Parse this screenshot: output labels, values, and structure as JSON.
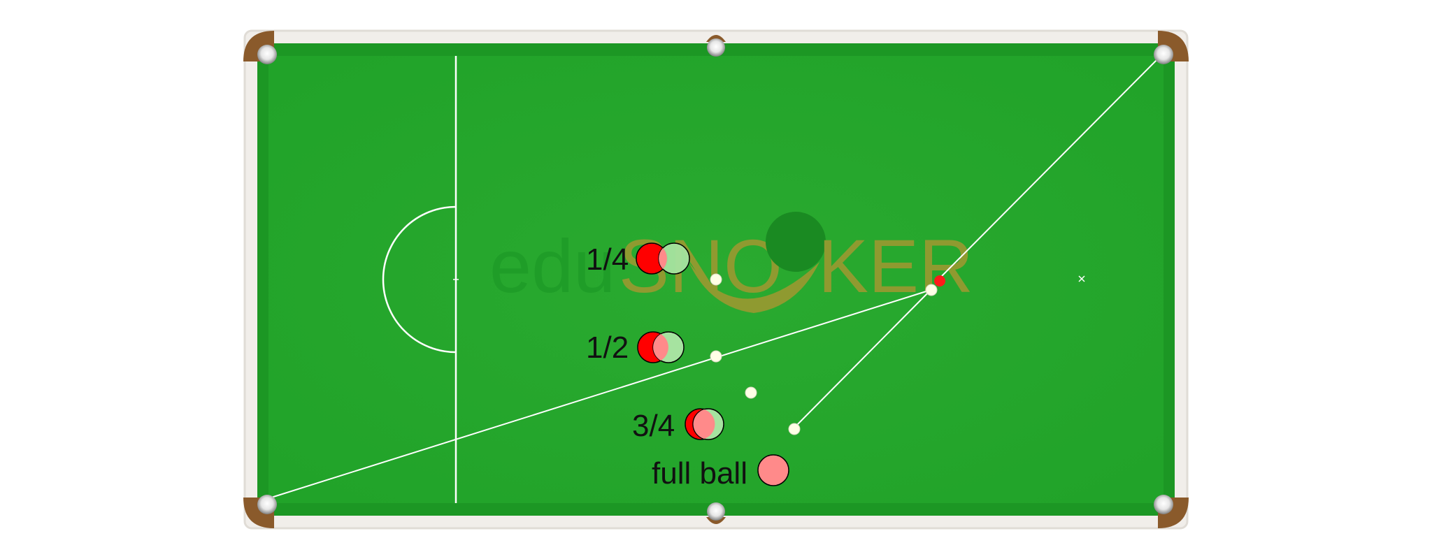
{
  "colors": {
    "cloth": "#24a82c",
    "cloth_edge": "#1a8a20",
    "cushion": "#1f9a26",
    "rail": "#f1eeea",
    "pocket_leather": "#8a5a2b",
    "pocket_metal": "#9a9a9a",
    "line": "#ffffff",
    "red_ball": "#ff0000",
    "ghost_ball": "#a6e3a0",
    "overlap": "#ff8a8a",
    "full_ball": "#ff8a8a",
    "cue_ball": "#ffffe6",
    "logo_grey": "#1f9d28",
    "logo_orange": "#8f9a30",
    "logo_dark": "#1a8a22"
  },
  "logo": {
    "edu": "edu",
    "sno": "SNO",
    "ker": "KER"
  },
  "labels": {
    "quarter": "1/4",
    "half": "1/2",
    "three_quarter": "3/4",
    "full": "full ball"
  },
  "icons": {
    "pocket": "pocket-icon",
    "ball": "ball-icon"
  }
}
